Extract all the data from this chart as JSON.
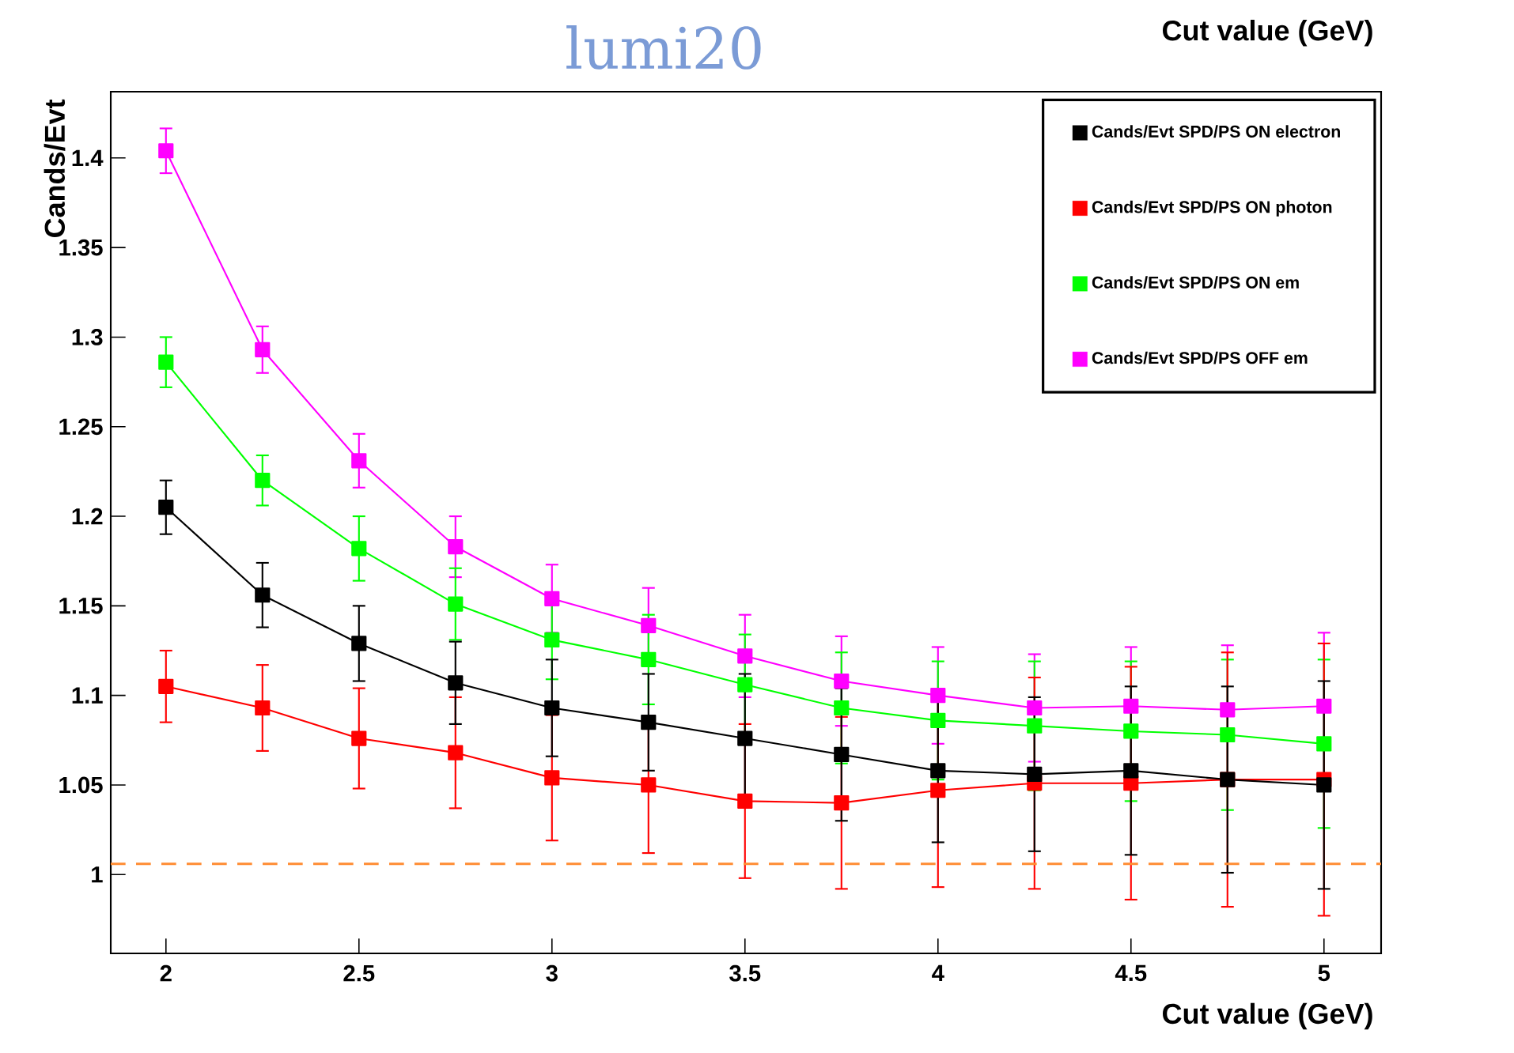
{
  "chart_data": {
    "type": "line",
    "title": "Cut value (GeV)",
    "xlabel": "Cut value (GeV)",
    "ylabel": "Cands/Evt",
    "annotations": [
      "lumi20"
    ],
    "x": [
      2,
      2.25,
      2.5,
      2.75,
      3,
      3.25,
      3.5,
      3.75,
      4,
      4.25,
      4.5,
      4.75,
      5
    ],
    "series": [
      {
        "name": "Cands/Evt SPD/PS ON electron",
        "color": "#000000",
        "values": [
          1.205,
          1.156,
          1.129,
          1.107,
          1.093,
          1.085,
          1.076,
          1.067,
          1.058,
          1.056,
          1.058,
          1.053,
          1.05
        ],
        "errors": [
          0.015,
          0.018,
          0.021,
          0.023,
          0.027,
          0.027,
          0.036,
          0.037,
          0.04,
          0.043,
          0.047,
          0.052,
          0.058
        ]
      },
      {
        "name": "Cands/Evt SPD/PS ON photon",
        "color": "#ff0000",
        "values": [
          1.105,
          1.093,
          1.076,
          1.068,
          1.054,
          1.05,
          1.041,
          1.04,
          1.047,
          1.051,
          1.051,
          1.053,
          1.053
        ],
        "errors": [
          0.02,
          0.024,
          0.028,
          0.031,
          0.035,
          0.038,
          0.043,
          0.048,
          0.054,
          0.059,
          0.065,
          0.071,
          0.076
        ]
      },
      {
        "name": "Cands/Evt SPD/PS ON em",
        "color": "#00ff00",
        "values": [
          1.286,
          1.22,
          1.182,
          1.151,
          1.131,
          1.12,
          1.106,
          1.093,
          1.086,
          1.083,
          1.08,
          1.078,
          1.073
        ],
        "errors": [
          0.014,
          0.014,
          0.018,
          0.02,
          0.022,
          0.025,
          0.028,
          0.031,
          0.033,
          0.036,
          0.039,
          0.042,
          0.047
        ]
      },
      {
        "name": "Cands/Evt SPD/PS OFF em",
        "color": "#ff00ff",
        "values": [
          1.404,
          1.293,
          1.231,
          1.183,
          1.154,
          1.139,
          1.122,
          1.108,
          1.1,
          1.093,
          1.094,
          1.092,
          1.094
        ],
        "errors": [
          0.0125,
          0.013,
          0.015,
          0.017,
          0.019,
          0.021,
          0.023,
          0.025,
          0.027,
          0.03,
          0.033,
          0.036,
          0.041
        ]
      }
    ],
    "marker": "square",
    "line_style": "solid",
    "legend": "top right",
    "xlim": [
      1.857,
      5.148
    ],
    "ylim": [
      0.956,
      1.437
    ],
    "xticks": [
      2,
      2.5,
      3,
      3.5,
      4,
      4.5,
      5
    ],
    "yticks": [
      1,
      1.05,
      1.1,
      1.15,
      1.2,
      1.25,
      1.3,
      1.35,
      1.4
    ],
    "ref_lines": [
      {
        "axis": "y",
        "value": 1.006,
        "color": "#ff8c33",
        "line_style": "dashed"
      }
    ]
  }
}
